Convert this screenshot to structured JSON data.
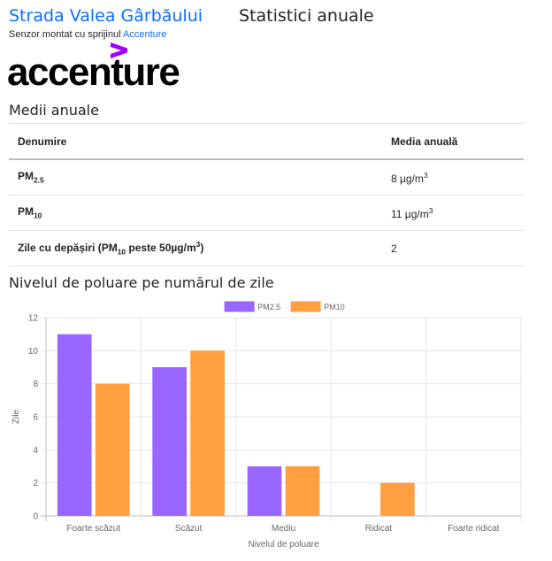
{
  "header": {
    "street_title": "Strada Valea Gârbăului",
    "page_title": "Statistici anuale",
    "sponsor_text": "Senzor montat cu sprijinul ",
    "sponsor_link": "Accenture",
    "logo_text": "accenture"
  },
  "annual": {
    "heading": "Medii anuale",
    "col_name": "Denumire",
    "col_value": "Media anuală",
    "rows": [
      {
        "label": "PM",
        "label_sub": "2.5",
        "value": "8 µg/m",
        "value_sup": "3"
      },
      {
        "label": "PM",
        "label_sub": "10",
        "value": "11 µg/m",
        "value_sup": "3"
      },
      {
        "label_pre": "Zile cu depășiri (PM",
        "label_sub": "10",
        "label_post": " peste 50µg/m",
        "label_sup": "3",
        "label_end": ")",
        "value": "2"
      }
    ]
  },
  "chart_section": {
    "heading": "Nivelul de poluare pe numărul de zile"
  },
  "chart_data": {
    "type": "bar",
    "categories": [
      "Foarte scăzut",
      "Scăzut",
      "Mediu",
      "Ridicat",
      "Foarte ridicat"
    ],
    "series": [
      {
        "name": "PM2.5",
        "values": [
          11,
          9,
          3,
          0,
          0
        ],
        "color": "#9966ff"
      },
      {
        "name": "PM10",
        "values": [
          8,
          10,
          3,
          2,
          0
        ],
        "color": "#ff9f40"
      }
    ],
    "xlabel": "Nivelul de poluare",
    "ylabel": "Zile",
    "ylim": [
      0,
      12
    ],
    "yticks": [
      "0",
      "2",
      "4",
      "6",
      "8",
      "10",
      "12"
    ],
    "grid": true,
    "legend_position": "top"
  }
}
